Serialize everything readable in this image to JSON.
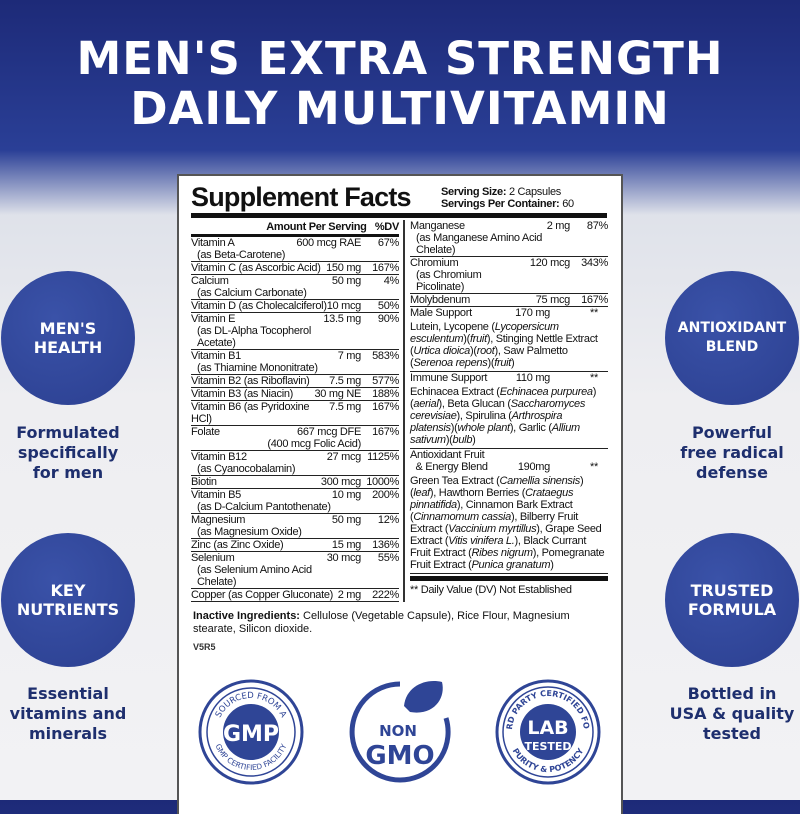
{
  "headline": [
    "MEN'S EXTRA STRENGTH",
    "DAILY MULTIVITAMIN"
  ],
  "features": [
    {
      "circle": "MEN'S\nHEALTH",
      "caption": "Formulated\nspecifically\nfor men"
    },
    {
      "circle": "KEY\nNUTRIENTS",
      "caption": "Essential\nvitamins and\nminerals"
    },
    {
      "circle": "ANTIOXIDANT\nBLEND",
      "caption": "Powerful\nfree radical\ndefense"
    },
    {
      "circle": "TRUSTED\nFORMULA",
      "caption": "Bottled in\nUSA & quality\ntested"
    }
  ],
  "facts": {
    "title": "Supplement Facts",
    "serving_size_label": "Serving Size:",
    "serving_size": "2 Capsules",
    "servings_label": "Servings Per Container:",
    "servings": "60",
    "header_amount": "Amount Per Serving",
    "header_dv": "%DV",
    "left": [
      {
        "name": "Vitamin A",
        "sub": "(as Beta-Carotene)",
        "amount": "600 mcg RAE",
        "dv": "67%"
      },
      {
        "name": "Vitamin C (as Ascorbic Acid)",
        "amount": "150 mg",
        "dv": "167%"
      },
      {
        "name": "Calcium",
        "sub": "(as Calcium Carbonate)",
        "amount": "50 mg",
        "dv": "4%"
      },
      {
        "name": "Vitamin D (as Cholecalciferol)",
        "amount": "10 mcg",
        "dv": "50%"
      },
      {
        "name": "Vitamin E",
        "sub": "(as DL-Alpha Tocopherol Acetate)",
        "amount": "13.5 mg",
        "dv": "90%"
      },
      {
        "name": "Vitamin B1",
        "sub": "(as Thiamine Mononitrate)",
        "amount": "7 mg",
        "dv": "583%"
      },
      {
        "name": "Vitamin B2 (as Riboflavin)",
        "amount": "7.5 mg",
        "dv": "577%"
      },
      {
        "name": "Vitamin B3 (as Niacin)",
        "amount": "30 mg NE",
        "dv": "188%"
      },
      {
        "name": "Vitamin B6 (as Pyridoxine HCl)",
        "amount": "7.5 mg",
        "dv": "167%"
      },
      {
        "name": "Folate",
        "amount": "667 mcg DFE",
        "amount_sub": "(400 mcg Folic Acid)",
        "dv": "167%"
      },
      {
        "name": "Vitamin B12",
        "sub": "(as Cyanocobalamin)",
        "amount": "27 mcg",
        "dv": "1125%"
      },
      {
        "name": "Biotin",
        "amount": "300 mcg",
        "dv": "1000%"
      },
      {
        "name": "Vitamin B5",
        "sub": "(as D-Calcium Pantothenate)",
        "amount": "10 mg",
        "dv": "200%"
      },
      {
        "name": "Magnesium",
        "sub": "(as Magnesium Oxide)",
        "amount": "50 mg",
        "dv": "12%"
      },
      {
        "name": "Zinc (as Zinc Oxide)",
        "amount": "15 mg",
        "dv": "136%"
      },
      {
        "name": "Selenium",
        "sub": "(as Selenium Amino Acid Chelate)",
        "amount": "30 mcg",
        "dv": "55%"
      },
      {
        "name": "Copper (as Copper Gluconate)",
        "amount": "2 mg",
        "dv": "222%"
      }
    ],
    "right": [
      {
        "name": "Manganese",
        "sub": "(as Manganese Amino Acid Chelate)",
        "amount": "2 mg",
        "dv": "87%"
      },
      {
        "name": "Chromium",
        "sub": "(as Chromium Picolinate)",
        "amount": "120 mcg",
        "dv": "343%"
      },
      {
        "name": "Molybdenum",
        "amount": "75 mcg",
        "dv": "167%"
      }
    ],
    "blends": [
      {
        "name": "Male Support",
        "amount": "170 mg",
        "dv": "**",
        "ingredients": "Lutein, Lycopene (<i>Lycopersicum esculentum</i>)(<i>fruit</i>), Stinging Nettle Extract (<i>Urtica dioica</i>)(<i>root</i>), Saw Palmetto (<i>Serenoa repens</i>)(<i>fruit</i>)"
      },
      {
        "name": "Immune Support",
        "amount": "110 mg",
        "dv": "**",
        "ingredients": "Echinacea Extract (<i>Echinacea purpurea</i>)(<i>aerial</i>), Beta Glucan (<i>Saccharomyces cerevisiae</i>), Spirulina (<i>Arthrospira platensis</i>)(<i>whole plant</i>), Garlic (<i>Allium sativum</i>)(<i>bulb</i>)"
      },
      {
        "name": "Antioxidant Fruit\n  & Energy Blend",
        "amount": "190mg",
        "dv": "**",
        "ingredients": "Green Tea Extract (<i>Camellia sinensis</i>)(<i>leaf</i>), Hawthorn Berries (<i>Crataegus pinnatifida</i>), Cinnamon Bark Extract (<i>Cinnamomum cassia</i>), Bilberry Fruit Extract (<i>Vaccinium myrtillus</i>), Grape Seed Extract (<i>Vitis vinifera L.</i>), Black Currant Fruit Extract (<i>Ribes nigrum</i>), Pomegranate Fruit Extract (<i>Punica granatum</i>)"
      }
    ],
    "footnote": "** Daily Value (DV) Not Established",
    "inactive_label": "Inactive Ingredients:",
    "inactive": "Cellulose (Vegetable Capsule), Rice Flour, Magnesium stearate, Silicon dioxide.",
    "code": "V5R5"
  },
  "badges": {
    "gmp": {
      "center": "GMP",
      "top": "SOURCED FROM A",
      "bottom": "GMP CERTIFIED FACILITY"
    },
    "nongmo": {
      "line1": "NON",
      "line2": "GMO"
    },
    "lab": {
      "line1": "LAB",
      "line2": "TESTED",
      "top": "3RD PARTY CERTIFIED FOR",
      "bottom": "PURITY & POTENCY"
    }
  },
  "colors": {
    "brand_blue": "#2f4596",
    "navy_text": "#1e2f6e",
    "header_blue": "#23358a"
  }
}
